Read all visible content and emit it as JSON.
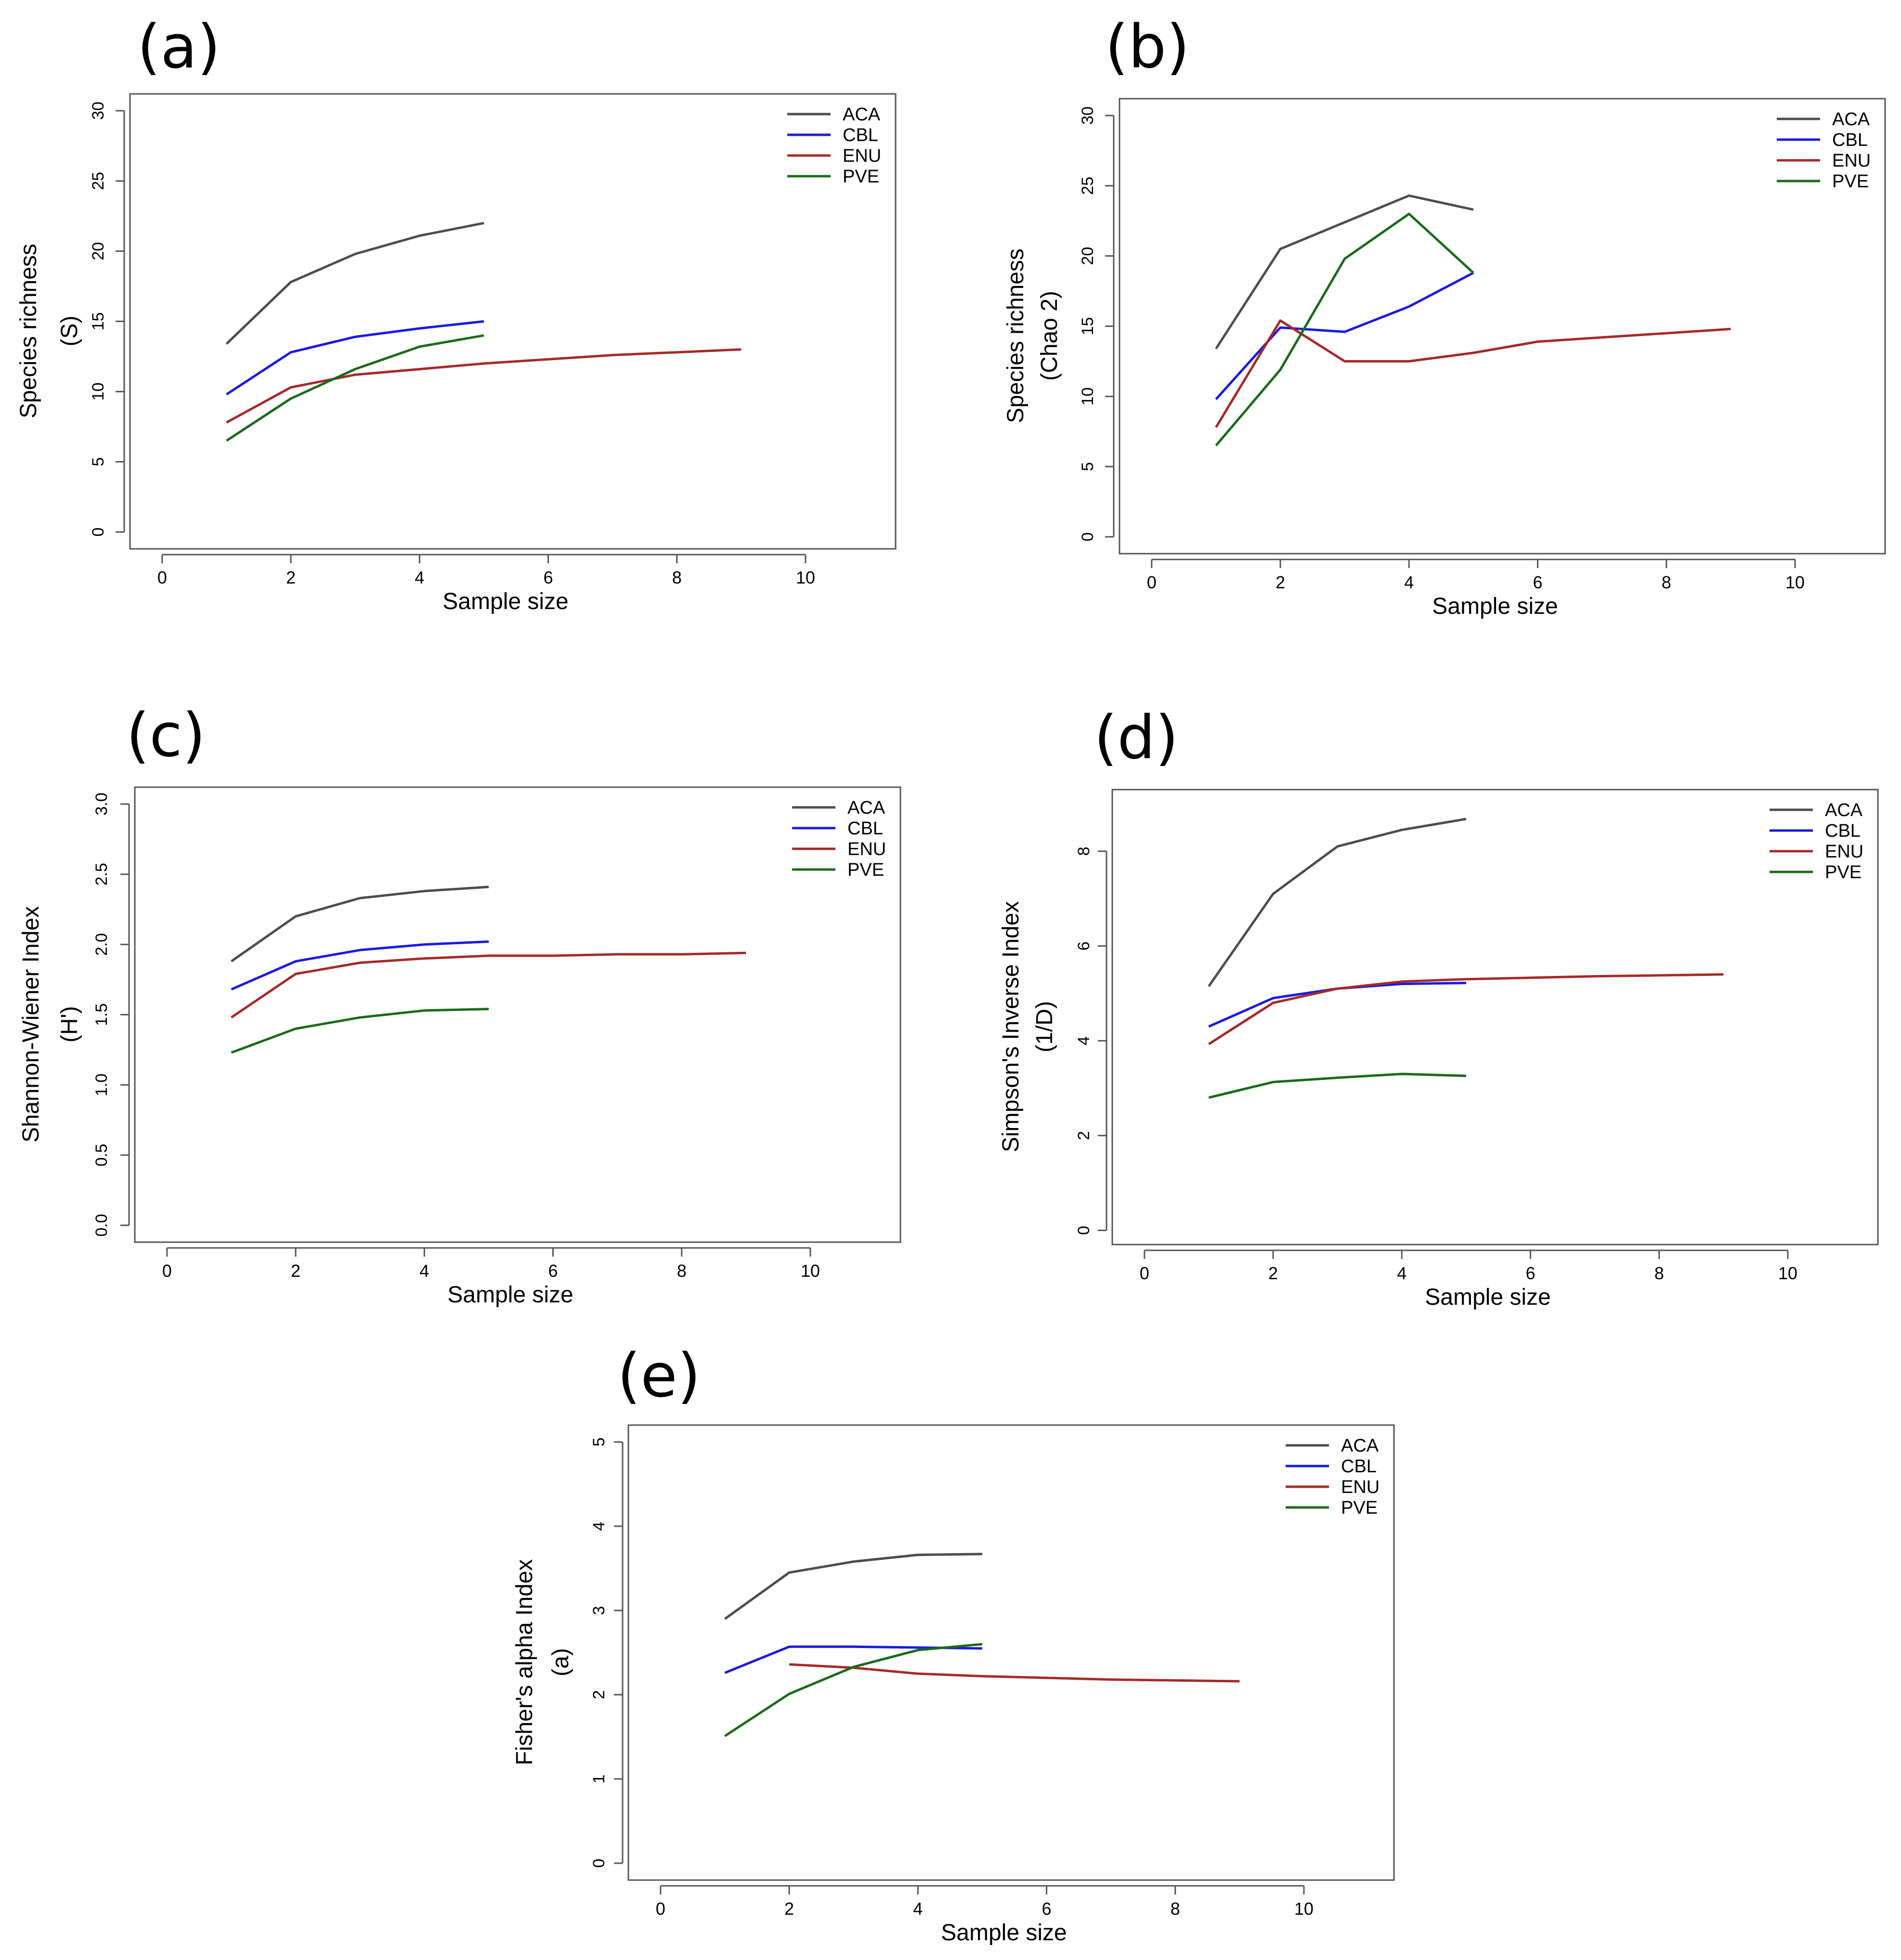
{
  "chart_data": [
    {
      "panel_label": "(a)",
      "type": "line",
      "xlabel": "Sample size",
      "ylabel_lines": [
        "Species richness",
        "(S)"
      ],
      "xlim": [
        -0.5,
        11.4
      ],
      "ylim": [
        -1.2,
        31.2
      ],
      "xticks": [
        "0",
        "2",
        "4",
        "6",
        "8",
        "10"
      ],
      "yticks": [
        "0",
        "5",
        "10",
        "15",
        "20",
        "25",
        "30"
      ],
      "legend_position": "top-right",
      "series": [
        {
          "name": "ACA",
          "color": "#4d4d4d",
          "x": [
            1,
            2,
            3,
            4,
            5
          ],
          "y": [
            13.4,
            17.8,
            19.8,
            21.1,
            22.0
          ]
        },
        {
          "name": "CBL",
          "color": "#1a1ae0",
          "x": [
            1,
            2,
            3,
            4,
            5
          ],
          "y": [
            9.8,
            12.8,
            13.9,
            14.5,
            15.0
          ]
        },
        {
          "name": "ENU",
          "color": "#a52a2a",
          "x": [
            1,
            2,
            3,
            4,
            5,
            6,
            7,
            8,
            9
          ],
          "y": [
            7.8,
            10.3,
            11.2,
            11.6,
            12.0,
            12.3,
            12.6,
            12.8,
            13.0
          ]
        },
        {
          "name": "PVE",
          "color": "#1a6b1a",
          "x": [
            1,
            2,
            3,
            4,
            5
          ],
          "y": [
            6.5,
            9.5,
            11.6,
            13.2,
            14.0
          ]
        }
      ]
    },
    {
      "panel_label": "(b)",
      "type": "line",
      "xlabel": "Sample size",
      "ylabel_lines": [
        "Species richness",
        "(Chao 2)"
      ],
      "xlim": [
        -0.5,
        11.4
      ],
      "ylim": [
        -1.2,
        31.2
      ],
      "xticks": [
        "0",
        "2",
        "4",
        "6",
        "8",
        "10"
      ],
      "yticks": [
        "0",
        "5",
        "10",
        "15",
        "20",
        "25",
        "30"
      ],
      "legend_position": "top-right",
      "series": [
        {
          "name": "ACA",
          "color": "#4d4d4d",
          "x": [
            1,
            2,
            3,
            4,
            5
          ],
          "y": [
            13.4,
            20.5,
            22.4,
            24.3,
            23.3
          ]
        },
        {
          "name": "CBL",
          "color": "#1a1ae0",
          "x": [
            1,
            2,
            3,
            4,
            5
          ],
          "y": [
            9.8,
            14.9,
            14.6,
            16.4,
            18.8
          ]
        },
        {
          "name": "ENU",
          "color": "#a52a2a",
          "x": [
            1,
            2,
            3,
            4,
            5,
            6,
            7,
            8,
            9
          ],
          "y": [
            7.8,
            15.4,
            12.5,
            12.5,
            13.1,
            13.9,
            14.2,
            14.5,
            14.8
          ]
        },
        {
          "name": "PVE",
          "color": "#1a6b1a",
          "x": [
            1,
            2,
            3,
            4,
            5
          ],
          "y": [
            6.5,
            11.9,
            19.8,
            23.0,
            18.8
          ]
        }
      ]
    },
    {
      "panel_label": "(c)",
      "type": "line",
      "xlabel": "Sample size",
      "ylabel_lines": [
        "Shannon-Wiener Index",
        "(H')"
      ],
      "xlim": [
        -0.5,
        11.4
      ],
      "ylim": [
        -0.12,
        3.12
      ],
      "xticks": [
        "0",
        "2",
        "4",
        "6",
        "8",
        "10"
      ],
      "yticks": [
        "0.0",
        "0.5",
        "1.0",
        "1.5",
        "2.0",
        "2.5",
        "3.0"
      ],
      "legend_position": "top-right",
      "series": [
        {
          "name": "ACA",
          "color": "#4d4d4d",
          "x": [
            1,
            2,
            3,
            4,
            5
          ],
          "y": [
            1.88,
            2.2,
            2.33,
            2.38,
            2.41
          ]
        },
        {
          "name": "CBL",
          "color": "#1a1ae0",
          "x": [
            1,
            2,
            3,
            4,
            5
          ],
          "y": [
            1.68,
            1.88,
            1.96,
            2.0,
            2.02
          ]
        },
        {
          "name": "ENU",
          "color": "#a52a2a",
          "x": [
            1,
            2,
            3,
            4,
            5,
            6,
            7,
            8,
            9
          ],
          "y": [
            1.48,
            1.79,
            1.87,
            1.9,
            1.92,
            1.92,
            1.93,
            1.93,
            1.94
          ]
        },
        {
          "name": "PVE",
          "color": "#1a6b1a",
          "x": [
            1,
            2,
            3,
            4,
            5
          ],
          "y": [
            1.23,
            1.4,
            1.48,
            1.53,
            1.54
          ]
        }
      ]
    },
    {
      "panel_label": "(d)",
      "type": "line",
      "xlabel": "Sample size",
      "ylabel_lines": [
        "Simpson's Inverse Index",
        "(1/D)"
      ],
      "xlim": [
        -0.5,
        11.4
      ],
      "ylim": [
        -0.3,
        9.3
      ],
      "xticks": [
        "0",
        "2",
        "4",
        "6",
        "8",
        "10"
      ],
      "yticks": [
        "0",
        "2",
        "4",
        "6",
        "8"
      ],
      "legend_position": "top-right",
      "series": [
        {
          "name": "ACA",
          "color": "#4d4d4d",
          "x": [
            1,
            2,
            3,
            4,
            5
          ],
          "y": [
            5.15,
            7.1,
            8.1,
            8.45,
            8.68
          ]
        },
        {
          "name": "CBL",
          "color": "#1a1ae0",
          "x": [
            1,
            2,
            3,
            4,
            5
          ],
          "y": [
            4.3,
            4.9,
            5.1,
            5.2,
            5.22
          ]
        },
        {
          "name": "ENU",
          "color": "#a52a2a",
          "x": [
            1,
            2,
            3,
            4,
            5,
            6,
            7,
            8,
            9
          ],
          "y": [
            3.93,
            4.8,
            5.1,
            5.25,
            5.3,
            5.33,
            5.36,
            5.38,
            5.4
          ]
        },
        {
          "name": "PVE",
          "color": "#1a6b1a",
          "x": [
            1,
            2,
            3,
            4,
            5
          ],
          "y": [
            2.8,
            3.13,
            3.22,
            3.3,
            3.26
          ]
        }
      ]
    },
    {
      "panel_label": "(e)",
      "type": "line",
      "xlabel": "Sample size",
      "ylabel_lines": [
        "Fisher's alpha Index",
        "(a)"
      ],
      "xlim": [
        -0.5,
        11.4
      ],
      "ylim": [
        -0.2,
        5.2
      ],
      "xticks": [
        "0",
        "2",
        "4",
        "6",
        "8",
        "10"
      ],
      "yticks": [
        "0",
        "1",
        "2",
        "3",
        "4",
        "5"
      ],
      "legend_position": "top-right",
      "series": [
        {
          "name": "ACA",
          "color": "#4d4d4d",
          "x": [
            1,
            2,
            3,
            4,
            5
          ],
          "y": [
            2.9,
            3.45,
            3.58,
            3.66,
            3.67
          ]
        },
        {
          "name": "CBL",
          "color": "#1a1ae0",
          "x": [
            1,
            2,
            3,
            4,
            5
          ],
          "y": [
            2.26,
            2.57,
            2.57,
            2.56,
            2.55
          ]
        },
        {
          "name": "ENU",
          "color": "#a52a2a",
          "x": [
            2,
            3,
            4,
            5,
            6,
            7,
            8,
            9
          ],
          "y": [
            2.36,
            2.32,
            2.25,
            2.22,
            2.2,
            2.18,
            2.17,
            2.16
          ]
        },
        {
          "name": "PVE",
          "color": "#1a6b1a",
          "x": [
            1,
            2,
            3,
            4,
            5
          ],
          "y": [
            1.51,
            2.01,
            2.33,
            2.53,
            2.6
          ]
        }
      ]
    }
  ]
}
